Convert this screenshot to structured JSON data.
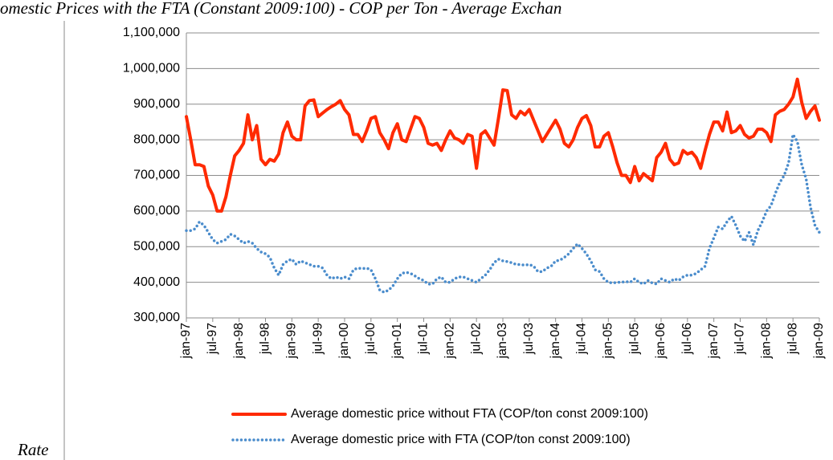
{
  "chart_data": {
    "type": "line",
    "title": "omestic Prices with the FTA (Constant 2009:100) - COP per Ton - Average Exchan",
    "footnote": "Rate",
    "categories": [
      "jan-97",
      null,
      null,
      null,
      null,
      null,
      "jul-97",
      null,
      null,
      null,
      null,
      null,
      "jan-98",
      null,
      null,
      null,
      null,
      null,
      "jul-98",
      null,
      null,
      null,
      null,
      null,
      "jan-99",
      null,
      null,
      null,
      null,
      null,
      "jul-99",
      null,
      null,
      null,
      null,
      null,
      "jan-00",
      null,
      null,
      null,
      null,
      null,
      "jul-00",
      null,
      null,
      null,
      null,
      null,
      "jan-01",
      null,
      null,
      null,
      null,
      null,
      "jul-01",
      null,
      null,
      null,
      null,
      null,
      "jan-02",
      null,
      null,
      null,
      null,
      null,
      "jul-02",
      null,
      null,
      null,
      null,
      null,
      "jan-03",
      null,
      null,
      null,
      null,
      null,
      "jul-03",
      null,
      null,
      null,
      null,
      null,
      "jan-04",
      null,
      null,
      null,
      null,
      null,
      "jul-04",
      null,
      null,
      null,
      null,
      null,
      "jan-05",
      null,
      null,
      null,
      null,
      null,
      "jul-05",
      null,
      null,
      null,
      null,
      null,
      "jan-06",
      null,
      null,
      null,
      null,
      null,
      "jul-06",
      null,
      null,
      null,
      null,
      null,
      "jan-07",
      null,
      null,
      null,
      null,
      null,
      "jul-07",
      null,
      null,
      null,
      null,
      null,
      "jan-08",
      null,
      null,
      null,
      null,
      null,
      "jul-08",
      null,
      null,
      null,
      null,
      null,
      "jan-09"
    ],
    "series": [
      {
        "name": "Average domestic price without FTA (COP/ton const 2009:100)",
        "color": "#ff2a00",
        "style": "solid",
        "values": [
          865000,
          800000,
          730000,
          730000,
          725000,
          670000,
          645000,
          600000,
          600000,
          640000,
          700000,
          755000,
          770000,
          790000,
          870000,
          800000,
          840000,
          745000,
          730000,
          745000,
          740000,
          760000,
          820000,
          850000,
          810000,
          800000,
          800000,
          895000,
          910000,
          912000,
          865000,
          875000,
          885000,
          893000,
          900000,
          910000,
          885000,
          870000,
          815000,
          815000,
          795000,
          825000,
          860000,
          865000,
          820000,
          800000,
          775000,
          820000,
          845000,
          800000,
          795000,
          830000,
          865000,
          860000,
          835000,
          790000,
          785000,
          790000,
          770000,
          800000,
          825000,
          805000,
          800000,
          790000,
          815000,
          810000,
          720000,
          815000,
          825000,
          805000,
          785000,
          860000,
          940000,
          938000,
          870000,
          860000,
          880000,
          870000,
          885000,
          855000,
          825000,
          795000,
          815000,
          835000,
          855000,
          830000,
          790000,
          780000,
          800000,
          835000,
          860000,
          868000,
          840000,
          780000,
          780000,
          810000,
          820000,
          780000,
          735000,
          700000,
          700000,
          680000,
          725000,
          685000,
          705000,
          695000,
          685000,
          750000,
          765000,
          790000,
          745000,
          730000,
          735000,
          770000,
          760000,
          765000,
          750000,
          720000,
          770000,
          815000,
          850000,
          850000,
          825000,
          878000,
          820000,
          825000,
          840000,
          815000,
          805000,
          810000,
          830000,
          830000,
          820000,
          795000,
          870000,
          880000,
          885000,
          900000,
          920000,
          970000,
          905000,
          860000,
          880000,
          895000,
          855000
        ]
      },
      {
        "name": "Average domestic  price with FTA (COP/ton const 2009:100)",
        "color": "#4a8ccc",
        "style": "dotted",
        "values": [
          545000,
          545000,
          550000,
          570000,
          560000,
          540000,
          520000,
          510000,
          515000,
          520000,
          535000,
          530000,
          520000,
          510000,
          515000,
          510000,
          495000,
          485000,
          480000,
          470000,
          440000,
          420000,
          450000,
          460000,
          465000,
          450000,
          460000,
          455000,
          450000,
          445000,
          445000,
          440000,
          420000,
          410000,
          415000,
          410000,
          415000,
          410000,
          435000,
          440000,
          438000,
          440000,
          435000,
          410000,
          378000,
          372000,
          378000,
          390000,
          410000,
          425000,
          428000,
          425000,
          418000,
          410000,
          405000,
          395000,
          395000,
          410000,
          415000,
          400000,
          400000,
          410000,
          415000,
          415000,
          410000,
          405000,
          400000,
          410000,
          420000,
          435000,
          455000,
          465000,
          460000,
          458000,
          455000,
          450000,
          450000,
          448000,
          450000,
          445000,
          430000,
          430000,
          440000,
          445000,
          460000,
          462000,
          470000,
          480000,
          495000,
          508000,
          495000,
          480000,
          460000,
          435000,
          430000,
          410000,
          400000,
          398000,
          400000,
          400000,
          402000,
          400000,
          410000,
          400000,
          395000,
          405000,
          398000,
          395000,
          410000,
          405000,
          400000,
          410000,
          405000,
          415000,
          420000,
          420000,
          425000,
          435000,
          445000,
          495000,
          525000,
          555000,
          550000,
          570000,
          585000,
          560000,
          530000,
          515000,
          540000,
          505000,
          545000,
          570000,
          600000,
          615000,
          650000,
          680000,
          700000,
          735000,
          815000,
          795000,
          730000,
          690000,
          610000,
          560000,
          540000
        ]
      }
    ],
    "ylim": [
      300000,
      1100000
    ],
    "yticks": [
      {
        "value": 300000,
        "label": "300,000"
      },
      {
        "value": 400000,
        "label": "400,000"
      },
      {
        "value": 500000,
        "label": "500,000"
      },
      {
        "value": 600000,
        "label": "600,000"
      },
      {
        "value": 700000,
        "label": "700,000"
      },
      {
        "value": 800000,
        "label": "800,000"
      },
      {
        "value": 900000,
        "label": "900,000"
      },
      {
        "value": 1000000,
        "label": "1,000,000"
      },
      {
        "value": 1100000,
        "label": "1,100,000"
      }
    ],
    "grid": true,
    "legend": "bottom"
  }
}
